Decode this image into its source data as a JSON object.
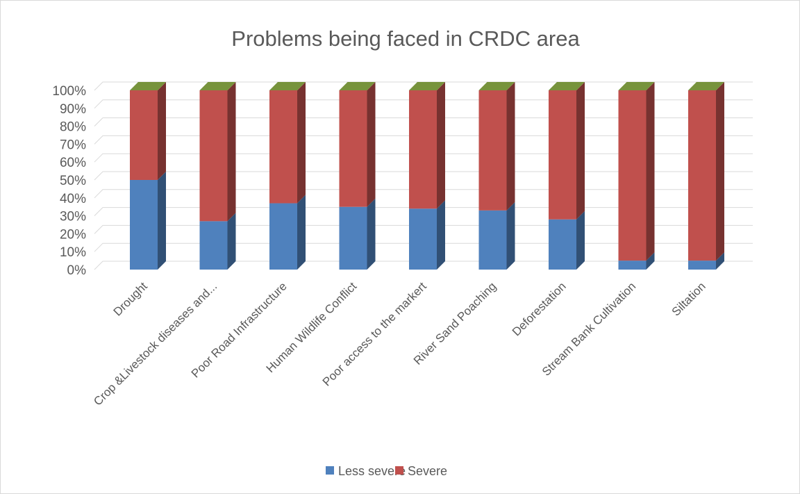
{
  "chart_data": {
    "type": "bar",
    "stacked": "percent",
    "title": "Problems being faced in CRDC area",
    "categories": [
      "Drought",
      "Crop &Livestock diseases and...",
      "Poor Road Infrastructure",
      "Human Wildlife Conflict",
      "Poor access to the markert",
      "River Sand Poaching",
      "Deforestation",
      "Stream Bank Cultivation",
      "Siltation"
    ],
    "series": [
      {
        "name": "Less severe",
        "color": "#4f81bd",
        "values": [
          50,
          27,
          37,
          35,
          34,
          33,
          28,
          5,
          5
        ]
      },
      {
        "name": "Severe",
        "color": "#c0504d",
        "values": [
          50,
          73,
          63,
          65,
          66,
          67,
          72,
          95,
          95
        ]
      }
    ],
    "cap_color": "#77933c",
    "y_ticks": [
      "0%",
      "10%",
      "20%",
      "30%",
      "40%",
      "50%",
      "60%",
      "70%",
      "80%",
      "90%",
      "100%"
    ],
    "ylim": [
      0,
      100
    ],
    "grid": true,
    "legend": "bottom"
  }
}
